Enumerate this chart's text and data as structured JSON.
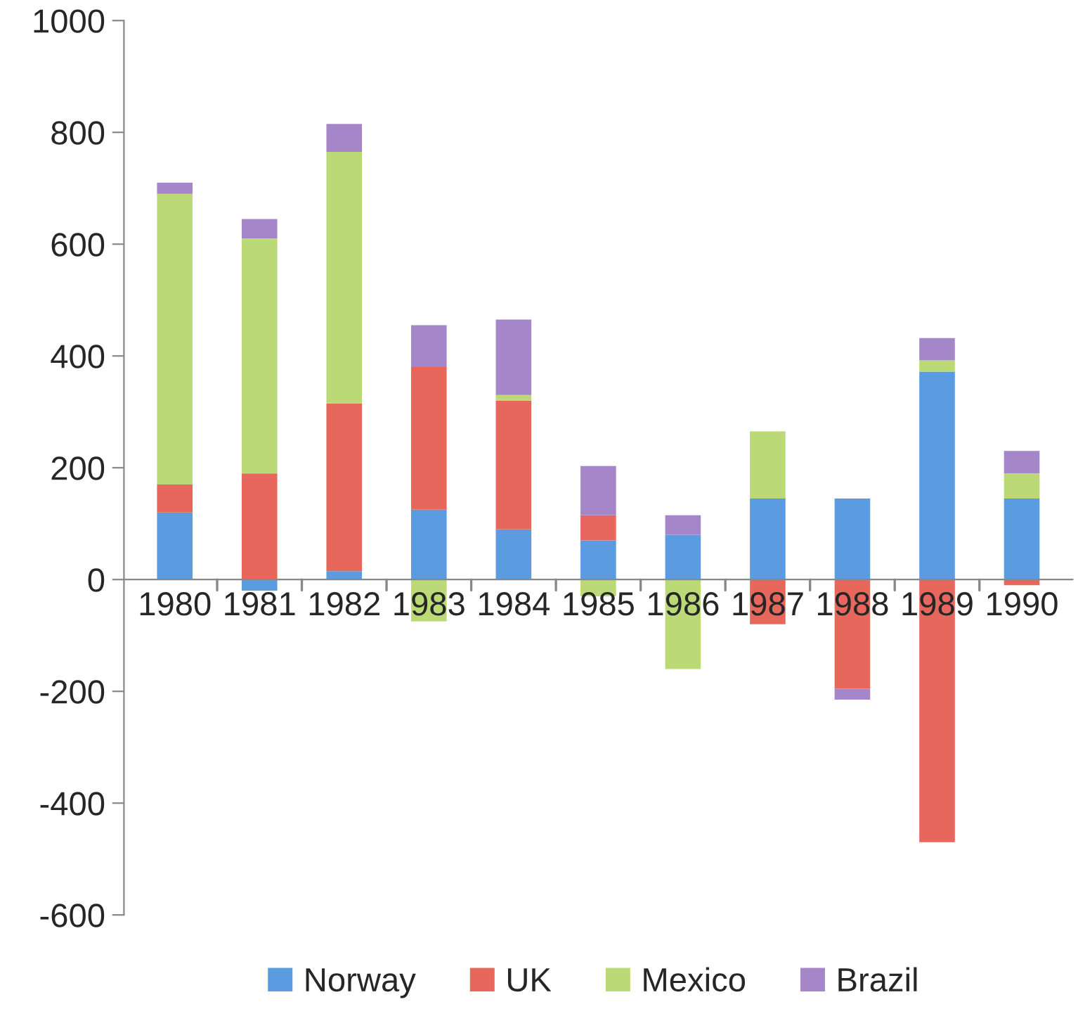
{
  "chart_data": {
    "type": "bar",
    "stacked": true,
    "categories": [
      "1980",
      "1981",
      "1982",
      "1983",
      "1984",
      "1985",
      "1986",
      "1987",
      "1988",
      "1989",
      "1990"
    ],
    "series": [
      {
        "name": "Norway",
        "color": "#5b9be0",
        "values": [
          120,
          -20,
          15,
          125,
          90,
          70,
          80,
          145,
          145,
          372,
          145
        ]
      },
      {
        "name": "UK",
        "color": "#e8675c",
        "values": [
          50,
          190,
          300,
          255,
          230,
          45,
          0,
          -80,
          -195,
          -470,
          -10
        ]
      },
      {
        "name": "Mexico",
        "color": "#bcd978",
        "values": [
          520,
          420,
          450,
          -75,
          10,
          -30,
          -160,
          120,
          0,
          20,
          45
        ]
      },
      {
        "name": "Brazil",
        "color": "#a587c9",
        "values": [
          20,
          35,
          50,
          75,
          135,
          88,
          35,
          0,
          -20,
          40,
          40
        ]
      }
    ],
    "ylim": [
      -600,
      1000
    ],
    "yticks": [
      -600,
      -400,
      -200,
      0,
      200,
      400,
      600,
      800,
      1000
    ],
    "grid": false,
    "legend": "bottom"
  }
}
